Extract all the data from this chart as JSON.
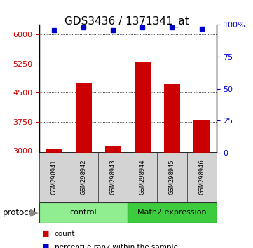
{
  "title": "GDS3436 / 1371341_at",
  "samples": [
    "GSM298941",
    "GSM298942",
    "GSM298943",
    "GSM298944",
    "GSM298945",
    "GSM298946"
  ],
  "counts": [
    3050,
    4750,
    3130,
    5280,
    4720,
    3800
  ],
  "percentile_ranks": [
    96,
    98,
    96,
    98,
    98,
    97
  ],
  "bar_color": "#CC0000",
  "percentile_color": "#0000CC",
  "ylim_left": [
    2950,
    6250
  ],
  "yticks_left": [
    3000,
    3750,
    4500,
    5250,
    6000
  ],
  "ylim_right": [
    -0.67,
    100
  ],
  "yticks_right": [
    0,
    25,
    50,
    75,
    100
  ],
  "background_color": "#ffffff",
  "left_axis_color": "#CC0000",
  "right_axis_color": "#0000CC",
  "title_fontsize": 11,
  "bar_width": 0.55,
  "control_color": "#90EE90",
  "math2_color": "#3DCC3D",
  "legend_items": [
    "count",
    "percentile rank within the sample"
  ]
}
